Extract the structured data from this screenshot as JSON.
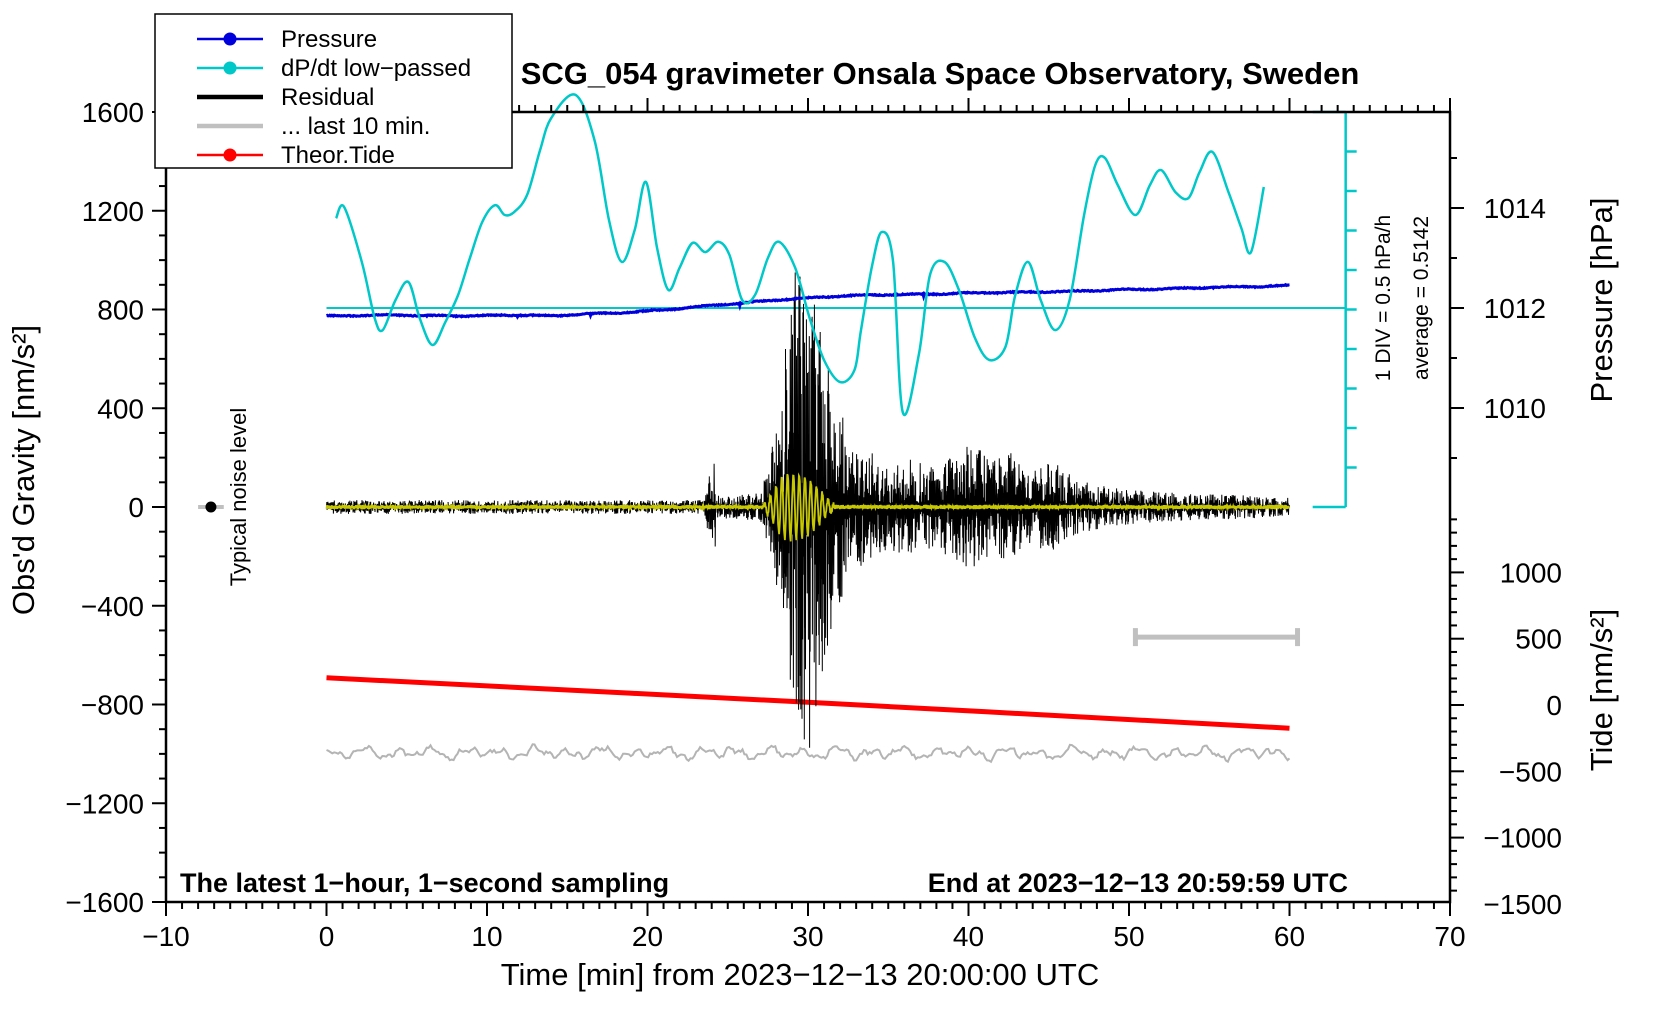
{
  "chart_data": {
    "type": "line",
    "title": "SCG_054 gravimeter Onsala Space Observatory, Sweden",
    "xlabel": "Time [min] from 2023−12−13 20:00:00 UTC",
    "x_axis": {
      "min": -10,
      "max": 70,
      "major_tick": 10,
      "minor_tick": 1,
      "tick_values": [
        -10,
        0,
        10,
        20,
        30,
        40,
        50,
        60,
        70
      ],
      "tick_labels": [
        "−10",
        "0",
        "10",
        "20",
        "30",
        "40",
        "50",
        "60",
        "70"
      ]
    },
    "y_left_gravity": {
      "label": "Obs'd Gravity [nm/s²]",
      "min": -1600,
      "max": 1600,
      "major_tick": 400,
      "minor_tick": 100,
      "tick_values": [
        -1600,
        -1200,
        -800,
        -400,
        0,
        400,
        800,
        1200,
        1600
      ],
      "tick_labels": [
        "−1600",
        "−1200",
        "−800",
        "−400",
        "0",
        "400",
        "800",
        "1200",
        "1600"
      ]
    },
    "y_right_pressure": {
      "label": "Pressure [hPa]",
      "min": 1008,
      "max": 1016,
      "major_tick": 2,
      "minor_tick": 1,
      "tick_values": [
        1010,
        1012,
        1014
      ],
      "tick_labels": [
        "1010",
        "1012",
        "1014"
      ]
    },
    "y_right_tide": {
      "label": "Tide [nm/s²]",
      "min": -1500,
      "max": 1500,
      "major_tick": 500,
      "minor_tick": 100,
      "tick_values": [
        -1500,
        -1000,
        -500,
        0,
        500,
        1000
      ],
      "tick_labels": [
        "−1500",
        "−1000",
        "−500",
        "0",
        "500",
        "1000"
      ]
    },
    "legend": {
      "items": [
        {
          "label": "Pressure",
          "color": "#0000dd",
          "marker": "dot"
        },
        {
          "label": "dP/dt low−passed",
          "color": "#00c8c8",
          "marker": "dot"
        },
        {
          "label": "Residual",
          "color": "#000000",
          "marker": "line"
        },
        {
          "label": "... last 10 min.",
          "color": "#c0c0c0",
          "marker": "line"
        },
        {
          "label": "Theor.Tide",
          "color": "#ff0000",
          "marker": "dot"
        }
      ]
    },
    "annotations": {
      "typical_noise_label": "Typical noise level",
      "div_label": "1 DIV = 0.5 hPa/h",
      "average_label": "average = 0.5142",
      "average_value": 0.5142,
      "sampling_note": "The latest 1−hour, 1−second sampling",
      "end_note": "End at 2023−12−13 20:59:59 UTC"
    },
    "series": {
      "pressure_hpa": {
        "unit": "hPa",
        "anchors": [
          [
            0,
            1011.84
          ],
          [
            4,
            1011.86
          ],
          [
            8,
            1011.84
          ],
          [
            12,
            1011.86
          ],
          [
            14,
            1011.84
          ],
          [
            16,
            1011.88
          ],
          [
            18,
            1011.9
          ],
          [
            20,
            1011.94
          ],
          [
            22,
            1011.99
          ],
          [
            24,
            1012.05
          ],
          [
            26,
            1012.1
          ],
          [
            28,
            1012.16
          ],
          [
            30,
            1012.2
          ],
          [
            32,
            1012.24
          ],
          [
            34,
            1012.26
          ],
          [
            36,
            1012.27
          ],
          [
            38,
            1012.28
          ],
          [
            40,
            1012.3
          ],
          [
            42,
            1012.31
          ],
          [
            44,
            1012.32
          ],
          [
            46,
            1012.33
          ],
          [
            48,
            1012.35
          ],
          [
            50,
            1012.37
          ],
          [
            52,
            1012.38
          ],
          [
            54,
            1012.4
          ],
          [
            56,
            1012.42
          ],
          [
            58,
            1012.43
          ],
          [
            60,
            1012.45
          ]
        ],
        "noise_hpa": 0.02
      },
      "dpdt_div": {
        "unit": "DIV relative to average, 1 DIV = 0.5 hPa/h",
        "points": [
          [
            0.6,
            2.28
          ],
          [
            1.1,
            2.56
          ],
          [
            2.2,
            1.17
          ],
          [
            3.0,
            -0.25
          ],
          [
            3.5,
            -0.56
          ],
          [
            4.3,
            0.2
          ],
          [
            5.1,
            0.66
          ],
          [
            5.8,
            -0.25
          ],
          [
            6.6,
            -0.94
          ],
          [
            7.4,
            -0.36
          ],
          [
            8.2,
            0.33
          ],
          [
            8.9,
            1.22
          ],
          [
            9.7,
            2.18
          ],
          [
            10.5,
            2.61
          ],
          [
            11.1,
            2.36
          ],
          [
            11.7,
            2.44
          ],
          [
            12.5,
            2.87
          ],
          [
            13.3,
            4.0
          ],
          [
            14.0,
            4.82
          ],
          [
            15.5,
            5.41
          ],
          [
            16.7,
            4.26
          ],
          [
            17.6,
            2.23
          ],
          [
            18.4,
            1.17
          ],
          [
            19.2,
            1.98
          ],
          [
            19.9,
            3.2
          ],
          [
            20.6,
            1.52
          ],
          [
            21.3,
            0.46
          ],
          [
            22.0,
            1.02
          ],
          [
            22.8,
            1.65
          ],
          [
            23.6,
            1.42
          ],
          [
            24.4,
            1.68
          ],
          [
            25.1,
            1.35
          ],
          [
            25.9,
            0.2
          ],
          [
            26.7,
            0.33
          ],
          [
            27.5,
            1.27
          ],
          [
            28.2,
            1.68
          ],
          [
            29.2,
            1.02
          ],
          [
            30.1,
            -0.25
          ],
          [
            31.0,
            -1.32
          ],
          [
            32.0,
            -1.88
          ],
          [
            32.9,
            -1.57
          ],
          [
            33.3,
            -0.56
          ],
          [
            34.0,
            1.09
          ],
          [
            34.6,
            1.93
          ],
          [
            35.3,
            1.17
          ],
          [
            35.9,
            -2.64
          ],
          [
            36.9,
            -1.2
          ],
          [
            37.6,
            0.84
          ],
          [
            38.5,
            1.17
          ],
          [
            39.4,
            0.46
          ],
          [
            40.4,
            -0.76
          ],
          [
            41.3,
            -1.32
          ],
          [
            42.3,
            -0.99
          ],
          [
            42.9,
            0.3
          ],
          [
            43.7,
            1.17
          ],
          [
            44.5,
            0.2
          ],
          [
            45.4,
            -0.56
          ],
          [
            46.3,
            0.2
          ],
          [
            47.2,
            2.36
          ],
          [
            47.9,
            3.63
          ],
          [
            48.5,
            3.81
          ],
          [
            49.3,
            3.12
          ],
          [
            50.4,
            2.36
          ],
          [
            51.3,
            3.12
          ],
          [
            52.0,
            3.5
          ],
          [
            52.9,
            2.94
          ],
          [
            53.7,
            2.79
          ],
          [
            54.4,
            3.45
          ],
          [
            55.2,
            3.96
          ],
          [
            56.2,
            2.94
          ],
          [
            57.0,
            2.03
          ],
          [
            57.6,
            1.42
          ],
          [
            58.4,
            3.07
          ]
        ],
        "average_line_div": 0
      },
      "residual_nms2": {
        "unit": "nm/s²",
        "envelope": [
          [
            0,
            28
          ],
          [
            23.5,
            28
          ],
          [
            24.0,
            170
          ],
          [
            24.3,
            45
          ],
          [
            27.0,
            60
          ],
          [
            27.8,
            260
          ],
          [
            28.4,
            420
          ],
          [
            28.8,
            700
          ],
          [
            29.3,
            950
          ],
          [
            30.0,
            980
          ],
          [
            30.5,
            870
          ],
          [
            31.0,
            620
          ],
          [
            31.8,
            430
          ],
          [
            32.5,
            330
          ],
          [
            33.5,
            240
          ],
          [
            35,
            180
          ],
          [
            36.5,
            200
          ],
          [
            38,
            160
          ],
          [
            39,
            220
          ],
          [
            40.5,
            260
          ],
          [
            41.5,
            190
          ],
          [
            42.5,
            230
          ],
          [
            43.5,
            150
          ],
          [
            44.5,
            170
          ],
          [
            45.5,
            190
          ],
          [
            46.5,
            120
          ],
          [
            48,
            90
          ],
          [
            50,
            70
          ],
          [
            52,
            60
          ],
          [
            54,
            55
          ],
          [
            56,
            50
          ],
          [
            58,
            45
          ],
          [
            60,
            40
          ]
        ],
        "key_spikes": [
          [
            24.15,
            175
          ],
          [
            24.22,
            -160
          ],
          [
            28.6,
            640
          ],
          [
            28.9,
            -700
          ],
          [
            29.2,
            950
          ],
          [
            29.55,
            -820
          ],
          [
            29.9,
            760
          ],
          [
            30.1,
            -975
          ],
          [
            30.4,
            820
          ],
          [
            30.7,
            -640
          ]
        ]
      },
      "filtered_residual_nms2": {
        "unit": "nm/s²",
        "color": "#c8c800",
        "base_noise": 9,
        "packet_period_min": 0.36,
        "packet_envelope": [
          [
            27.2,
            10
          ],
          [
            27.8,
            60
          ],
          [
            28.3,
            120
          ],
          [
            28.7,
            135
          ],
          [
            29.4,
            130
          ],
          [
            30.0,
            115
          ],
          [
            30.6,
            80
          ],
          [
            31.1,
            40
          ],
          [
            31.6,
            15
          ]
        ]
      },
      "theor_tide_nms2": {
        "unit": "nm/s² (right tide axis)",
        "points": [
          [
            0,
            205
          ],
          [
            30,
            20
          ],
          [
            60,
            -175
          ]
        ]
      },
      "residual_last10_nms2": {
        "unit": "nm/s² (offset trace)",
        "center": -996,
        "amplitude": 30
      }
    },
    "markers": {
      "typical_noise_marker": {
        "t": -7.2,
        "value": 0,
        "bar_halfwidth_min": 0.8
      },
      "div_scale_bar": {
        "t": 63.5,
        "top_gravity": 1600,
        "bottom_gravity": 0,
        "divisions": 10
      },
      "last10_range_bar": {
        "t_start": 50.4,
        "t_end": 60.5,
        "gravity": -527
      },
      "average_line": {
        "t_start": 0,
        "t_end": 63.5
      }
    },
    "colors": {
      "pressure": "#0000dd",
      "dpdt": "#00c8c8",
      "residual": "#000000",
      "filtered": "#c8c800",
      "tide": "#ff0000",
      "last10": "#b4b4b4",
      "gray_bar": "#c0c0c0",
      "frame": "#000000"
    }
  }
}
